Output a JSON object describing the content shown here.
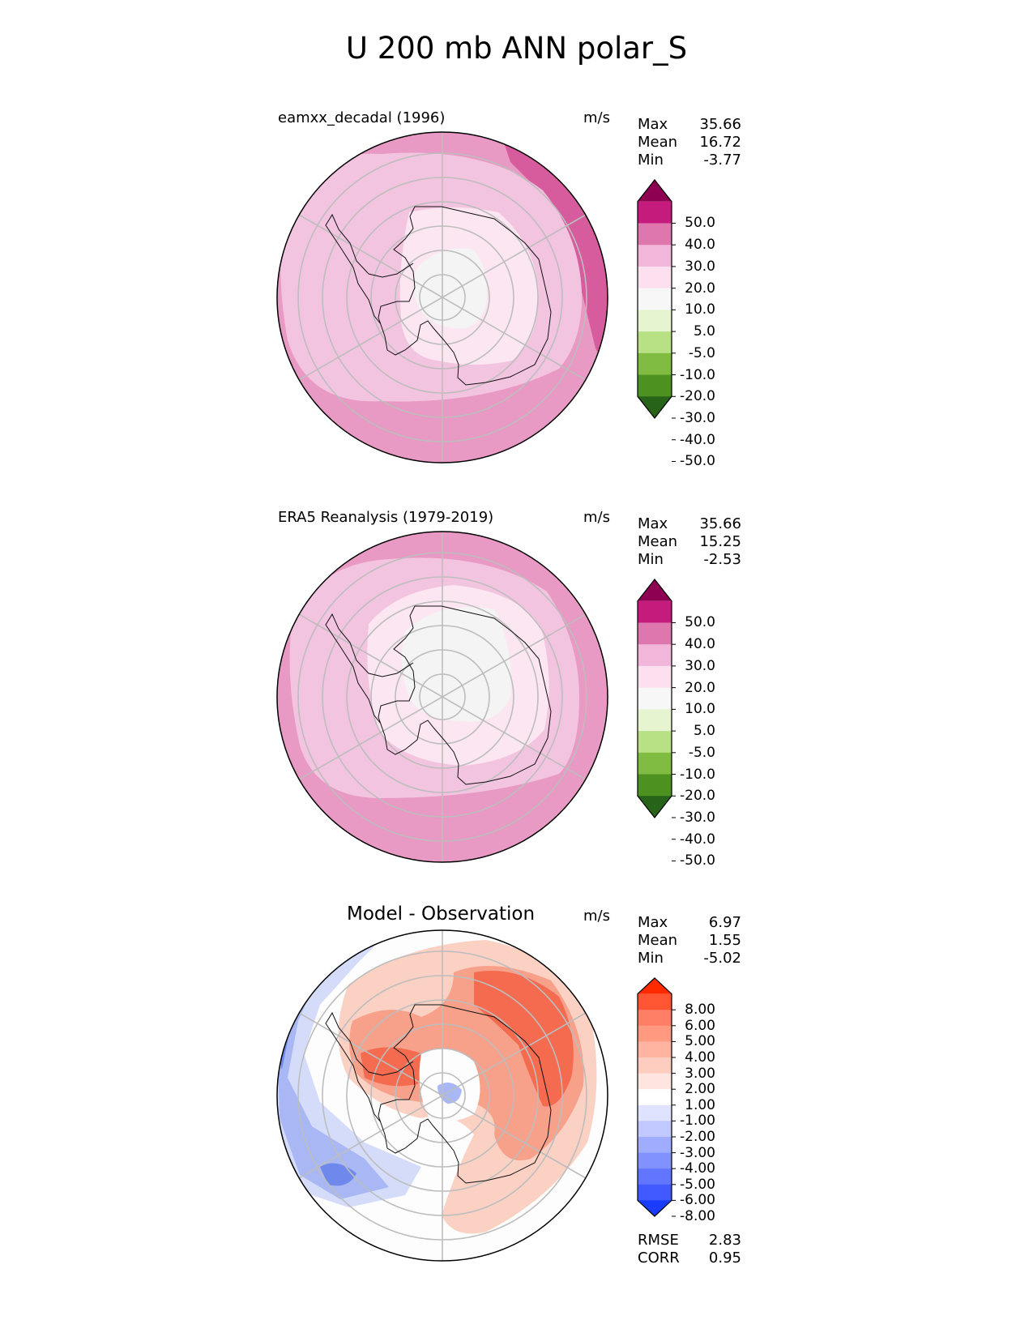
{
  "figure": {
    "title": "U 200 mb ANN polar_S"
  },
  "panels": [
    {
      "title": "eamxx_decadal (1996)",
      "units": "m/s",
      "stats": [
        {
          "label": "Max",
          "value": "35.66"
        },
        {
          "label": "Mean",
          "value": "16.72"
        },
        {
          "label": "Min",
          "value": "-3.77"
        }
      ],
      "colorbar": {
        "ticks": [
          "50.0",
          "40.0",
          "30.0",
          "20.0",
          "10.0",
          "5.0",
          "-5.0",
          "-10.0",
          "-20.0",
          "-30.0",
          "-40.0",
          "-50.0"
        ],
        "colors": [
          "#8e0152",
          "#c51b7d",
          "#de77ae",
          "#f1b6da",
          "#fde0ef",
          "#f7f7f7",
          "#e6f5d0",
          "#b8e186",
          "#7fbc41",
          "#4d9221",
          "#276419"
        ]
      },
      "map_colors": {
        "outer": "#e899c4",
        "ring": "#f3c4df",
        "inner": "#fbe6f1",
        "core": "#f4f4f4",
        "sector": "#d65c9d"
      }
    },
    {
      "title": "ERA5 Reanalysis (1979-2019)",
      "units": "m/s",
      "stats": [
        {
          "label": "Max",
          "value": "35.66"
        },
        {
          "label": "Mean",
          "value": "15.25"
        },
        {
          "label": "Min",
          "value": "-2.53"
        }
      ],
      "colorbar": {
        "ticks": [
          "50.0",
          "40.0",
          "30.0",
          "20.0",
          "10.0",
          "5.0",
          "-5.0",
          "-10.0",
          "-20.0",
          "-30.0",
          "-40.0",
          "-50.0"
        ],
        "colors": [
          "#8e0152",
          "#c51b7d",
          "#de77ae",
          "#f1b6da",
          "#fde0ef",
          "#f7f7f7",
          "#e6f5d0",
          "#b8e186",
          "#7fbc41",
          "#4d9221",
          "#276419"
        ]
      },
      "map_colors": {
        "outer": "#e899c4",
        "ring": "#f3c4df",
        "inner": "#fbe6f1",
        "core": "#f4f4f4",
        "sector": "#d65c9d"
      }
    },
    {
      "title": "Model - Observation",
      "units": "m/s",
      "stats": [
        {
          "label": "Max",
          "value": "6.97"
        },
        {
          "label": "Mean",
          "value": "1.55"
        },
        {
          "label": "Min",
          "value": "-5.02"
        }
      ],
      "metrics": [
        {
          "label": "RMSE",
          "value": "2.83"
        },
        {
          "label": "CORR",
          "value": "0.95"
        }
      ],
      "colorbar": {
        "ticks": [
          "8.00",
          "6.00",
          "5.00",
          "4.00",
          "3.00",
          "2.00",
          "1.00",
          "-1.00",
          "-2.00",
          "-3.00",
          "-4.00",
          "-5.00",
          "-6.00",
          "-8.00"
        ],
        "colors": [
          "#ff2a00",
          "#ff5533",
          "#ff7f66",
          "#ff9980",
          "#ffb3a0",
          "#ffccc0",
          "#ffe5df",
          "#ffffff",
          "#dfe3ff",
          "#c0c8ff",
          "#a0adff",
          "#8192ff",
          "#6175ff",
          "#415aff",
          "#1a3cff"
        ]
      },
      "map_colors": {
        "base": "#fdfdfd",
        "red_light": "#fbd1c4",
        "red_mid": "#f7a08a",
        "red_dark": "#f46b4f",
        "blue_light": "#d4dcfa",
        "blue_mid": "#a9b8f4",
        "blue_dark": "#6f88ec"
      }
    }
  ],
  "chart_data": [
    {
      "type": "heatmap",
      "title": "eamxx_decadal (1996)",
      "projection": "south polar stereographic",
      "variable": "U 200 mb ANN",
      "units": "m/s",
      "levels": [
        -50,
        -40,
        -30,
        -20,
        -10,
        -5,
        5,
        10,
        20,
        30,
        40,
        50
      ],
      "stats": {
        "max": 35.66,
        "mean": 16.72,
        "min": -3.77
      }
    },
    {
      "type": "heatmap",
      "title": "ERA5 Reanalysis (1979-2019)",
      "projection": "south polar stereographic",
      "variable": "U 200 mb ANN",
      "units": "m/s",
      "levels": [
        -50,
        -40,
        -30,
        -20,
        -10,
        -5,
        5,
        10,
        20,
        30,
        40,
        50
      ],
      "stats": {
        "max": 35.66,
        "mean": 15.25,
        "min": -2.53
      }
    },
    {
      "type": "heatmap",
      "title": "Model - Observation",
      "projection": "south polar stereographic",
      "variable": "U 200 mb ANN difference",
      "units": "m/s",
      "levels": [
        -8,
        -6,
        -5,
        -4,
        -3,
        -2,
        -1,
        1,
        2,
        3,
        4,
        5,
        6,
        8
      ],
      "stats": {
        "max": 6.97,
        "mean": 1.55,
        "min": -5.02
      },
      "metrics": {
        "rmse": 2.83,
        "corr": 0.95
      }
    }
  ]
}
